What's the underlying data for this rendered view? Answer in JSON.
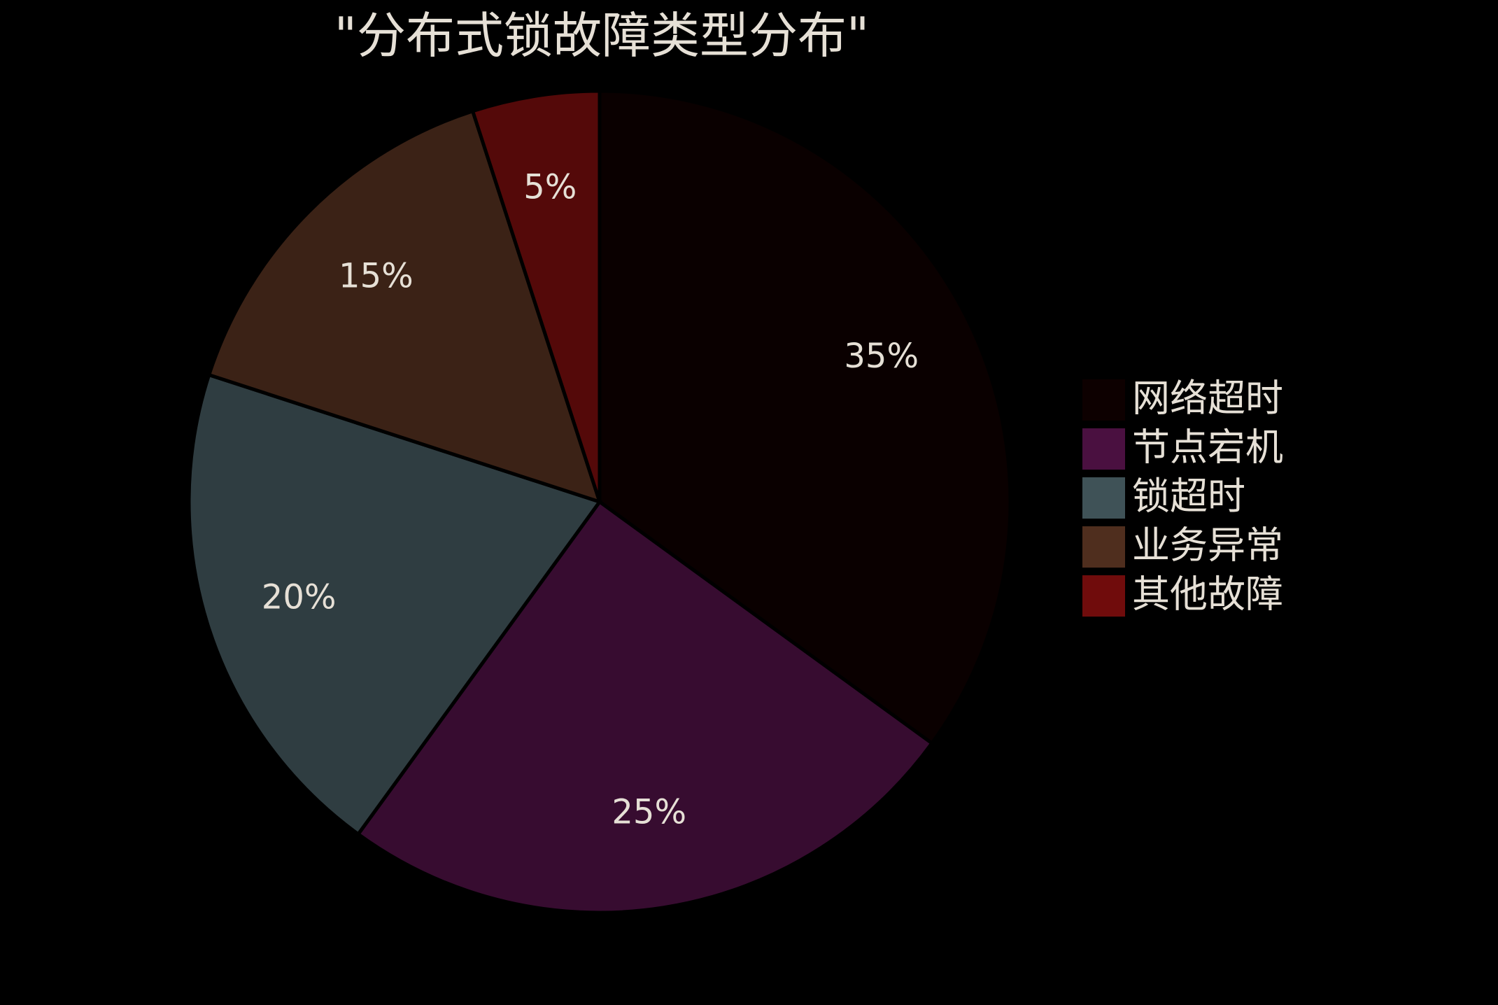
{
  "chart_data": {
    "type": "pie",
    "title": "\"分布式锁故障类型分布\"",
    "categories": [
      "网络超时",
      "节点宕机",
      "锁超时",
      "业务异常",
      "其他故障"
    ],
    "values": [
      35,
      25,
      20,
      15,
      5
    ],
    "value_labels": [
      "35%",
      "25%",
      "20%",
      "15%",
      "5%"
    ],
    "colors": [
      "#0d0000",
      "#4a1040",
      "#3f5257",
      "#4f2e1e",
      "#700c0c"
    ],
    "legend": "right"
  }
}
